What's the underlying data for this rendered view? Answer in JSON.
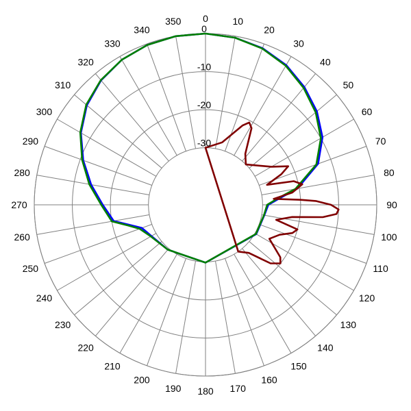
{
  "chart_data": {
    "type": "polar-line",
    "angle_direction": "clockwise",
    "zero_at": "top",
    "angle_ticks": [
      "0",
      "10",
      "20",
      "30",
      "40",
      "50",
      "60",
      "70",
      "80",
      "90",
      "100",
      "110",
      "120",
      "130",
      "140",
      "150",
      "160",
      "170",
      "180",
      "190",
      "200",
      "210",
      "220",
      "230",
      "240",
      "250",
      "260",
      "270",
      "280",
      "290",
      "300",
      "310",
      "320",
      "330",
      "340",
      "350"
    ],
    "radial_range": [
      -30,
      0
    ],
    "radial_ticks": [
      "0",
      "-10",
      "-20",
      "-30"
    ],
    "radial_tick_values": [
      0,
      -10,
      -20,
      -30
    ],
    "grid": true,
    "series": [
      {
        "color": "#0000ff",
        "points": [
          [
            0,
            0
          ],
          [
            10,
            -0.4
          ],
          [
            20,
            -1.2
          ],
          [
            30,
            -2.6
          ],
          [
            40,
            -4.6
          ],
          [
            50,
            -6.8
          ],
          [
            60,
            -9.5
          ],
          [
            70,
            -13.5
          ],
          [
            80,
            -20.5
          ],
          [
            85,
            -25.5
          ],
          [
            90,
            -28.5
          ],
          [
            100,
            -29.3
          ],
          [
            120,
            -29.6
          ],
          [
            180,
            -29.8
          ],
          [
            220,
            -29.6
          ],
          [
            240,
            -28.6
          ],
          [
            250,
            -27.2
          ],
          [
            255,
            -24.5
          ],
          [
            260,
            -20.5
          ],
          [
            270,
            -18.0
          ],
          [
            280,
            -14.5
          ],
          [
            290,
            -10.8
          ],
          [
            300,
            -7.2
          ],
          [
            310,
            -4.3
          ],
          [
            320,
            -2.3
          ],
          [
            330,
            -1.0
          ],
          [
            340,
            -0.3
          ],
          [
            350,
            0
          ],
          [
            360,
            0
          ]
        ]
      },
      {
        "color": "#008000",
        "points": [
          [
            0,
            0
          ],
          [
            10,
            -0.4
          ],
          [
            20,
            -1.3
          ],
          [
            30,
            -2.8
          ],
          [
            40,
            -4.9
          ],
          [
            50,
            -7.2
          ],
          [
            60,
            -10.0
          ],
          [
            70,
            -14.0
          ],
          [
            80,
            -21.0
          ],
          [
            85,
            -26.0
          ],
          [
            90,
            -28.8
          ],
          [
            100,
            -29.4
          ],
          [
            120,
            -29.7
          ],
          [
            180,
            -29.8
          ],
          [
            220,
            -29.6
          ],
          [
            240,
            -28.4
          ],
          [
            250,
            -26.6
          ],
          [
            255,
            -24.0
          ],
          [
            260,
            -20.0
          ],
          [
            270,
            -17.6
          ],
          [
            280,
            -14.0
          ],
          [
            290,
            -10.5
          ],
          [
            300,
            -7.0
          ],
          [
            310,
            -4.1
          ],
          [
            320,
            -2.2
          ],
          [
            330,
            -1.0
          ],
          [
            340,
            -0.3
          ],
          [
            350,
            0
          ],
          [
            360,
            0
          ]
        ]
      },
      {
        "color": "#800000",
        "points": [
          [
            0,
            -30
          ],
          [
            15,
            -28
          ],
          [
            25,
            -22
          ],
          [
            28,
            -20.5
          ],
          [
            31,
            -21.5
          ],
          [
            38,
            -28
          ],
          [
            45,
            -30
          ],
          [
            60,
            -25
          ],
          [
            65,
            -21
          ],
          [
            68,
            -23.5
          ],
          [
            72,
            -28
          ],
          [
            75,
            -21
          ],
          [
            78,
            -19
          ],
          [
            82,
            -22
          ],
          [
            85,
            -27
          ],
          [
            87,
            -20
          ],
          [
            88,
            -16
          ],
          [
            90,
            -12
          ],
          [
            92,
            -10
          ],
          [
            94,
            -10.5
          ],
          [
            96,
            -14
          ],
          [
            98,
            -22
          ],
          [
            102,
            -26
          ],
          [
            105,
            -20
          ],
          [
            108,
            -21
          ],
          [
            112,
            -24
          ],
          [
            118,
            -26
          ],
          [
            125,
            -21
          ],
          [
            128,
            -20
          ],
          [
            132,
            -22
          ],
          [
            138,
            -28
          ],
          [
            145,
            -30
          ],
          [
            360,
            -30
          ]
        ]
      }
    ]
  }
}
